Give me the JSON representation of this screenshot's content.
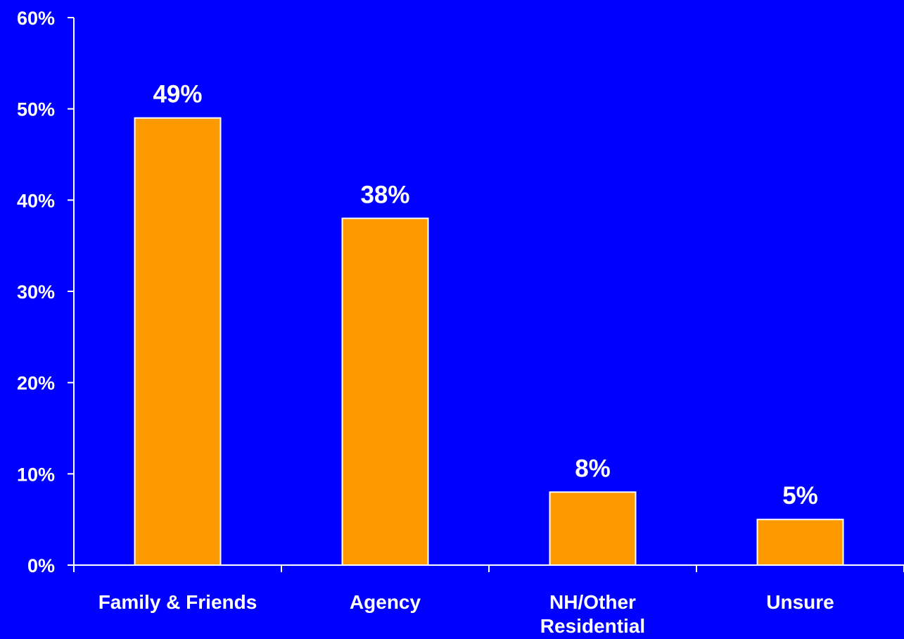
{
  "chart_data": {
    "type": "bar",
    "categories": [
      [
        "Family & Friends"
      ],
      [
        "Agency"
      ],
      [
        "NH/Other",
        "Residential"
      ],
      [
        "Unsure"
      ]
    ],
    "values": [
      49,
      38,
      8,
      5
    ],
    "data_labels": [
      "49%",
      "38%",
      "8%",
      "5%"
    ],
    "y_ticks": [
      0,
      10,
      20,
      30,
      40,
      50,
      60
    ],
    "y_tick_labels": [
      "0%",
      "10%",
      "20%",
      "30%",
      "40%",
      "50%",
      "60%"
    ],
    "ylim": [
      0,
      60
    ],
    "grid": false,
    "legend": "none",
    "colors": {
      "background": "#0000ff",
      "bar": "#ff9900",
      "bar_stroke": "#ffffff",
      "axis": "#ffffff",
      "text": "#ffffff"
    }
  }
}
